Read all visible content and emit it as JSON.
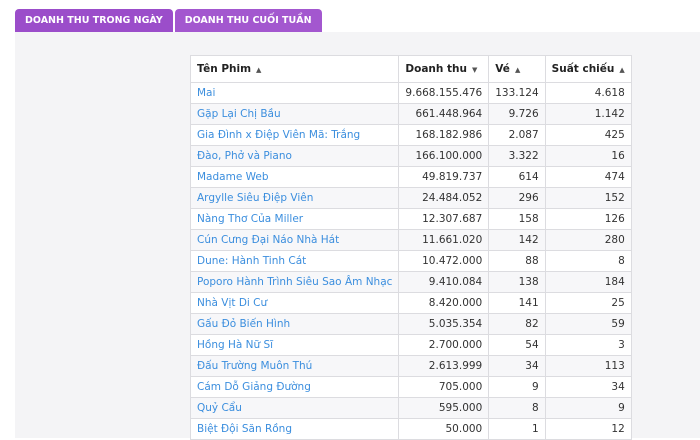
{
  "tabs": [
    {
      "label": "DOANH THU TRONG NGÀY"
    },
    {
      "label": "DOANH THU CUỐI TUẦN"
    }
  ],
  "table": {
    "headers": {
      "title": "Tên Phim",
      "revenue": "Doanh thu",
      "tickets": "Vé",
      "screenings": "Suất chiếu"
    },
    "rows": [
      {
        "title": "Mai",
        "revenue": "9.668.155.476",
        "tickets": "133.124",
        "screenings": "4.618"
      },
      {
        "title": "Gặp Lại Chị Bầu",
        "revenue": "661.448.964",
        "tickets": "9.726",
        "screenings": "1.142"
      },
      {
        "title": "Gia Đình x Điệp Viên Mã: Trắng",
        "revenue": "168.182.986",
        "tickets": "2.087",
        "screenings": "425"
      },
      {
        "title": "Đào, Phở và Piano",
        "revenue": "166.100.000",
        "tickets": "3.322",
        "screenings": "16"
      },
      {
        "title": "Madame Web",
        "revenue": "49.819.737",
        "tickets": "614",
        "screenings": "474"
      },
      {
        "title": "Argylle Siêu Điệp Viên",
        "revenue": "24.484.052",
        "tickets": "296",
        "screenings": "152"
      },
      {
        "title": "Nàng Thơ Của Miller",
        "revenue": "12.307.687",
        "tickets": "158",
        "screenings": "126"
      },
      {
        "title": "Cún Cưng Đại Náo Nhà Hát",
        "revenue": "11.661.020",
        "tickets": "142",
        "screenings": "280"
      },
      {
        "title": "Dune: Hành Tinh Cát",
        "revenue": "10.472.000",
        "tickets": "88",
        "screenings": "8"
      },
      {
        "title": "Poporo Hành Trình Siêu Sao Âm Nhạc",
        "revenue": "9.410.084",
        "tickets": "138",
        "screenings": "184"
      },
      {
        "title": "Nhà Vịt Di Cư",
        "revenue": "8.420.000",
        "tickets": "141",
        "screenings": "25"
      },
      {
        "title": "Gấu Đỏ Biến Hình",
        "revenue": "5.035.354",
        "tickets": "82",
        "screenings": "59"
      },
      {
        "title": "Hồng Hà Nữ Sĩ",
        "revenue": "2.700.000",
        "tickets": "54",
        "screenings": "3"
      },
      {
        "title": "Đấu Trường Muôn Thú",
        "revenue": "2.613.999",
        "tickets": "34",
        "screenings": "113"
      },
      {
        "title": "Cám Dỗ Giảng Đường",
        "revenue": "705.000",
        "tickets": "9",
        "screenings": "34"
      },
      {
        "title": "Quỷ Cẩu",
        "revenue": "595.000",
        "tickets": "8",
        "screenings": "9"
      },
      {
        "title": "Biệt Đội Săn Rồng",
        "revenue": "50.000",
        "tickets": "1",
        "screenings": "12"
      }
    ]
  },
  "icons": {
    "sort_asc": "triangle-up-icon",
    "sort_desc": "triangle-down-icon"
  },
  "colors": {
    "tab_bg": "#9b4dca",
    "link": "#3b8ede",
    "panel_bg": "#f4f4f6"
  }
}
